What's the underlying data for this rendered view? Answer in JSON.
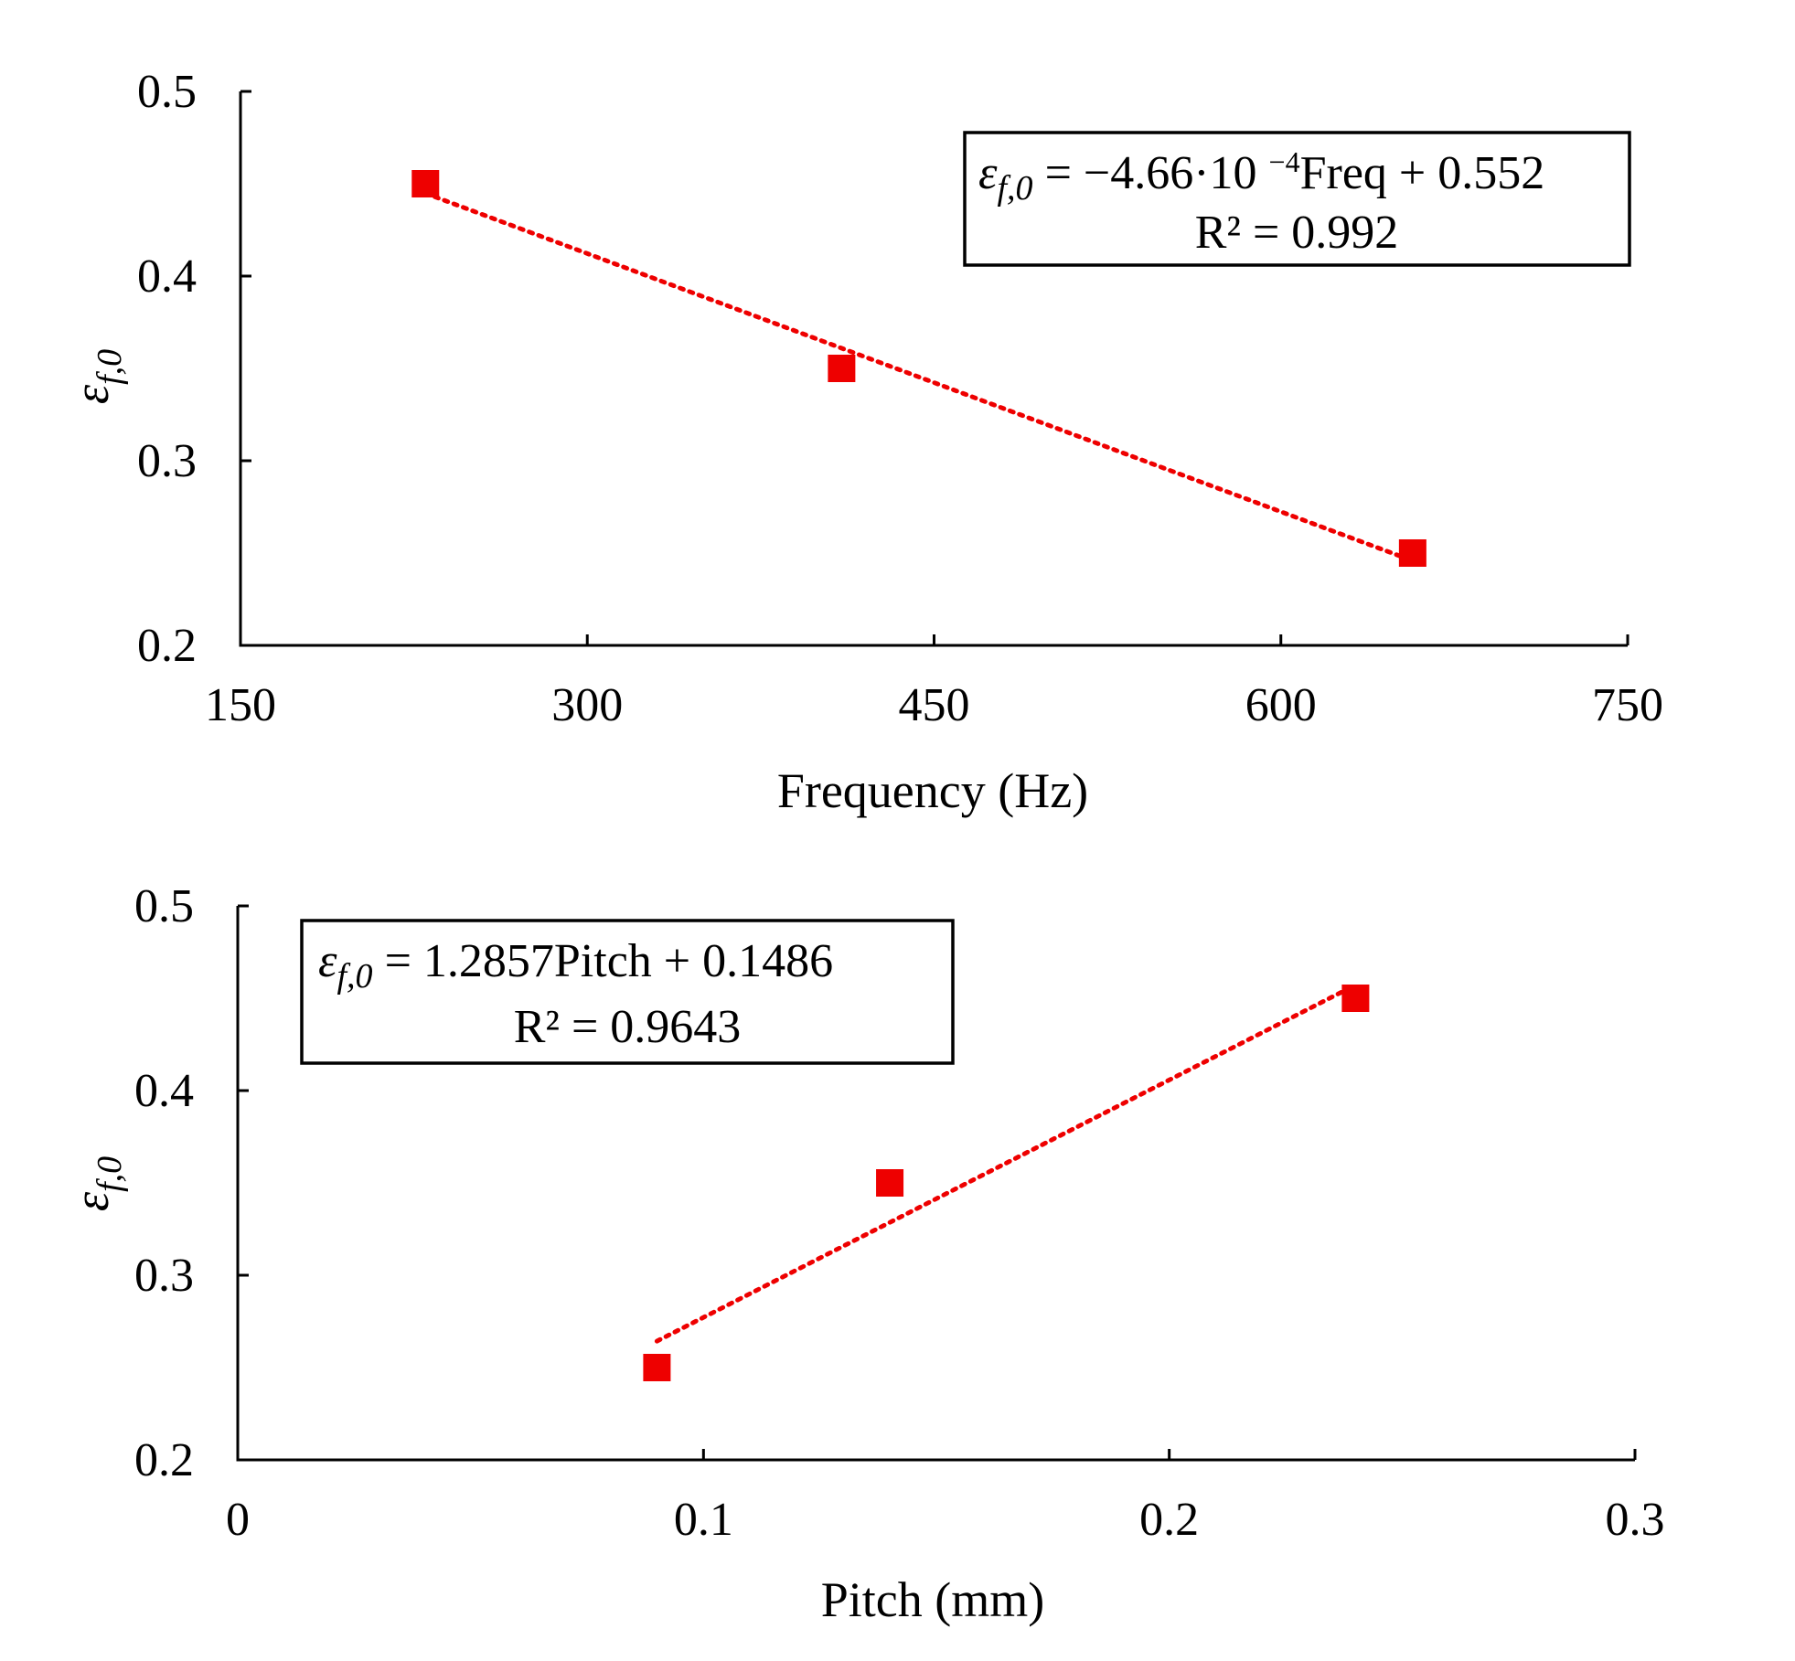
{
  "chart_data": [
    {
      "type": "scatter",
      "x_values": [
        230,
        410,
        657
      ],
      "y_values": [
        0.45,
        0.35,
        0.25
      ],
      "trendline": {
        "type": "linear",
        "slope": -0.000466,
        "intercept": 0.552,
        "x_start": 230,
        "x_end": 657
      },
      "xlabel": "Frequency (Hz)",
      "ylabel_symbol": "ε",
      "ylabel_subscript": "f,0",
      "xlim": [
        150,
        750
      ],
      "ylim": [
        0.2,
        0.5
      ],
      "xticks": [
        "150",
        "300",
        "450",
        "600",
        "750"
      ],
      "yticks": [
        "0.2",
        "0.3",
        "0.4",
        "0.5"
      ],
      "xtick_values": [
        150,
        300,
        450,
        600,
        750
      ],
      "ytick_values": [
        0.2,
        0.3,
        0.4,
        0.5
      ],
      "legend_placement": "top-right",
      "equation": {
        "lhs_symbol": "ε",
        "lhs_subscript": "f,0",
        "rhs_prefix": " = −4.66·10 ",
        "exponent": "−4",
        "rhs_suffix": "Freq + 0.552",
        "r2": "R² = 0.992"
      },
      "marker_color": "#ee0000",
      "grid": false
    },
    {
      "type": "scatter",
      "x_values": [
        0.09,
        0.14,
        0.24
      ],
      "y_values": [
        0.25,
        0.35,
        0.45
      ],
      "trendline": {
        "type": "linear",
        "slope": 1.2857,
        "intercept": 0.1486,
        "x_start": 0.09,
        "x_end": 0.24
      },
      "xlabel": "Pitch (mm)",
      "ylabel_symbol": "ε",
      "ylabel_subscript": "f,0",
      "xlim": [
        0,
        0.3
      ],
      "ylim": [
        0.2,
        0.5
      ],
      "xticks": [
        "0",
        "0.1",
        "0.2",
        "0.3"
      ],
      "yticks": [
        "0.2",
        "0.3",
        "0.4",
        "0.5"
      ],
      "xtick_values": [
        0,
        0.1,
        0.2,
        0.3
      ],
      "ytick_values": [
        0.2,
        0.3,
        0.4,
        0.5
      ],
      "legend_placement": "top-left",
      "equation": {
        "lhs_symbol": "ε",
        "lhs_subscript": "f,0",
        "rhs_prefix": " = 1.2857Pitch + 0.1486",
        "exponent": "",
        "rhs_suffix": "",
        "r2": "R² = 0.9643"
      },
      "marker_color": "#ee0000",
      "grid": false
    }
  ]
}
